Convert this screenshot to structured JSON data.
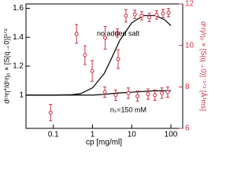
{
  "chart_data": {
    "type": "line",
    "x_label": "cp [mg/ml]",
    "y_label": "dᶜˢη*/dᶜη₀ × [S(q→0)]¹ᐟ²",
    "y2_label": "dᶜη/η₀ × [S(q→0)]⁻¹ᐟ² [Å²ms]",
    "xscale": "log",
    "xlim": [
      0.02,
      200
    ],
    "xticks": [
      0.1,
      1,
      10,
      100
    ],
    "ylim": [
      0.77,
      1.63
    ],
    "yticks": [
      1,
      1.2,
      1.4,
      1.6
    ],
    "y2lim": [
      6,
      12
    ],
    "y2ticks": [
      6,
      8,
      10,
      12
    ],
    "y2color": "#d0314a",
    "series": [
      {
        "name": "no added salt",
        "type": "line",
        "color": "#000000",
        "x": [
          0.02,
          0.1,
          0.3,
          0.5,
          1,
          2,
          3,
          5,
          10,
          20,
          40,
          70,
          100
        ],
        "values": [
          1,
          1,
          1.003,
          1.01,
          1.05,
          1.15,
          1.25,
          1.38,
          1.5,
          1.55,
          1.55,
          1.52,
          1.48
        ]
      },
      {
        "name": "nₛ=150 mM",
        "type": "line",
        "color": "#000000",
        "x": [
          0.02,
          0.1,
          0.3,
          0.5,
          1,
          2,
          3,
          5,
          10,
          20,
          40,
          70,
          100
        ],
        "values": [
          1,
          1,
          1,
          1,
          1,
          1.005,
          1.01,
          1.015,
          1.02,
          1.025,
          1.03,
          1.03,
          1.03
        ]
      },
      {
        "type": "scatter",
        "axis": "y2",
        "color": "#d0314a",
        "x": [
          0.085,
          0.39,
          0.64,
          0.98,
          2.1,
          4.3,
          4.5,
          7.1,
          12,
          18,
          28,
          43,
          63,
          87
        ],
        "values": [
          6.76,
          10.56,
          9.53,
          8.77,
          10.37,
          10.6,
          9.34,
          11.43,
          11.5,
          11.43,
          11.35,
          11.47,
          11.54,
          11.58
        ],
        "errors": [
          0.4,
          0.45,
          0.45,
          0.5,
          0.55,
          0.2,
          0.45,
          0.3,
          0.2,
          0.2,
          0.2,
          0.2,
          0.2,
          0.2
        ]
      },
      {
        "type": "scatter",
        "axis": "y2",
        "color": "#d0314a",
        "x": [
          2.05,
          3.9,
          8.2,
          14,
          26,
          39,
          59,
          83
        ],
        "values": [
          7.75,
          7.6,
          7.7,
          7.55,
          7.65,
          7.6,
          7.7,
          7.75
        ],
        "errors": [
          0.25,
          0.25,
          0.25,
          0.25,
          0.25,
          0.25,
          0.25,
          0.25
        ]
      }
    ]
  }
}
